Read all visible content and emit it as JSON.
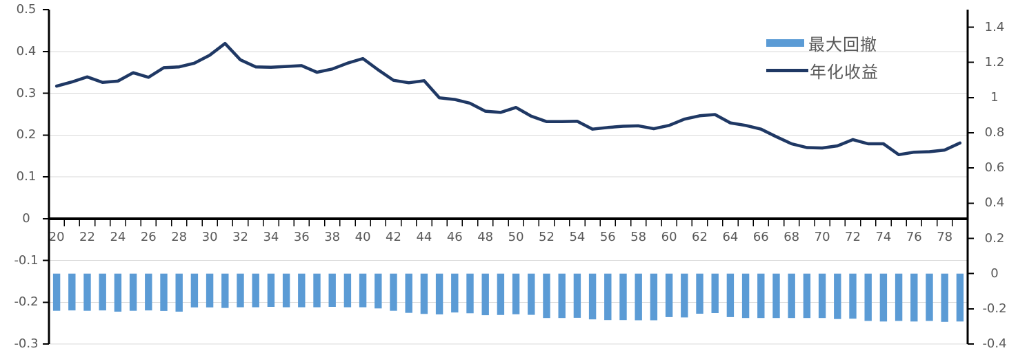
{
  "colors": {
    "bar": "#5B9BD5",
    "line": "#1F3864",
    "grid": "#D9D9D9",
    "axis": "#000000",
    "tick_text": "#595959",
    "background": "#FFFFFF"
  },
  "chart_data": {
    "type": "combo",
    "title": "",
    "grid": true,
    "legend_position": "top-right",
    "x": [
      20,
      21,
      22,
      23,
      24,
      25,
      26,
      27,
      28,
      29,
      30,
      31,
      32,
      33,
      34,
      35,
      36,
      37,
      38,
      39,
      40,
      41,
      42,
      43,
      44,
      45,
      46,
      47,
      48,
      49,
      50,
      51,
      52,
      53,
      54,
      55,
      56,
      57,
      58,
      59,
      60,
      61,
      62,
      63,
      64,
      65,
      66,
      67,
      68,
      69,
      70,
      71,
      72,
      73,
      74,
      75,
      76,
      77,
      78,
      79
    ],
    "x_axis": {
      "tick_labels": [
        "20",
        "22",
        "24",
        "26",
        "28",
        "30",
        "32",
        "34",
        "36",
        "38",
        "40",
        "42",
        "44",
        "46",
        "48",
        "50",
        "52",
        "54",
        "56",
        "58",
        "60",
        "62",
        "64",
        "66",
        "68",
        "70",
        "72",
        "74",
        "76",
        "78"
      ],
      "labels_every": 2
    },
    "left_axis": {
      "min": -0.3,
      "max": 0.5,
      "tick_interval": 0.1,
      "tick_labels": [
        "0.5",
        "0.4",
        "0.3",
        "0.2",
        "0.1",
        "0",
        "-0.1",
        "-0.2",
        "-0.3"
      ]
    },
    "right_axis": {
      "min": -0.4,
      "max": 1.5,
      "tick_interval": 0.2,
      "tick_labels": [
        "1.4",
        "1.2",
        "1",
        "0.8",
        "0.6",
        "0.4",
        "0.2",
        "0",
        "-0.2",
        "-0.4"
      ]
    },
    "series": [
      {
        "name": "最大回撤",
        "type": "bar",
        "axis": "right",
        "color": "#5B9BD5",
        "values": [
          -0.211,
          -0.209,
          -0.211,
          -0.209,
          -0.216,
          -0.211,
          -0.209,
          -0.212,
          -0.216,
          -0.192,
          -0.192,
          -0.195,
          -0.191,
          -0.191,
          -0.189,
          -0.191,
          -0.191,
          -0.191,
          -0.189,
          -0.191,
          -0.191,
          -0.198,
          -0.211,
          -0.223,
          -0.229,
          -0.232,
          -0.221,
          -0.225,
          -0.236,
          -0.235,
          -0.231,
          -0.234,
          -0.252,
          -0.252,
          -0.251,
          -0.26,
          -0.264,
          -0.264,
          -0.265,
          -0.265,
          -0.247,
          -0.249,
          -0.228,
          -0.224,
          -0.247,
          -0.252,
          -0.252,
          -0.252,
          -0.252,
          -0.252,
          -0.252,
          -0.258,
          -0.256,
          -0.269,
          -0.272,
          -0.269,
          -0.272,
          -0.269,
          -0.274,
          -0.272
        ]
      },
      {
        "name": "年化收益",
        "type": "line",
        "axis": "left",
        "color": "#1F3864",
        "values": [
          0.317,
          0.327,
          0.339,
          0.326,
          0.329,
          0.349,
          0.338,
          0.361,
          0.363,
          0.372,
          0.391,
          0.419,
          0.38,
          0.363,
          0.362,
          0.364,
          0.366,
          0.35,
          0.358,
          0.372,
          0.383,
          0.356,
          0.331,
          0.325,
          0.33,
          0.289,
          0.285,
          0.276,
          0.257,
          0.254,
          0.266,
          0.245,
          0.232,
          0.232,
          0.233,
          0.214,
          0.218,
          0.221,
          0.222,
          0.215,
          0.223,
          0.238,
          0.246,
          0.249,
          0.229,
          0.223,
          0.214,
          0.196,
          0.179,
          0.17,
          0.169,
          0.174,
          0.189,
          0.179,
          0.179,
          0.153,
          0.159,
          0.16,
          0.164,
          0.181
        ]
      }
    ]
  }
}
